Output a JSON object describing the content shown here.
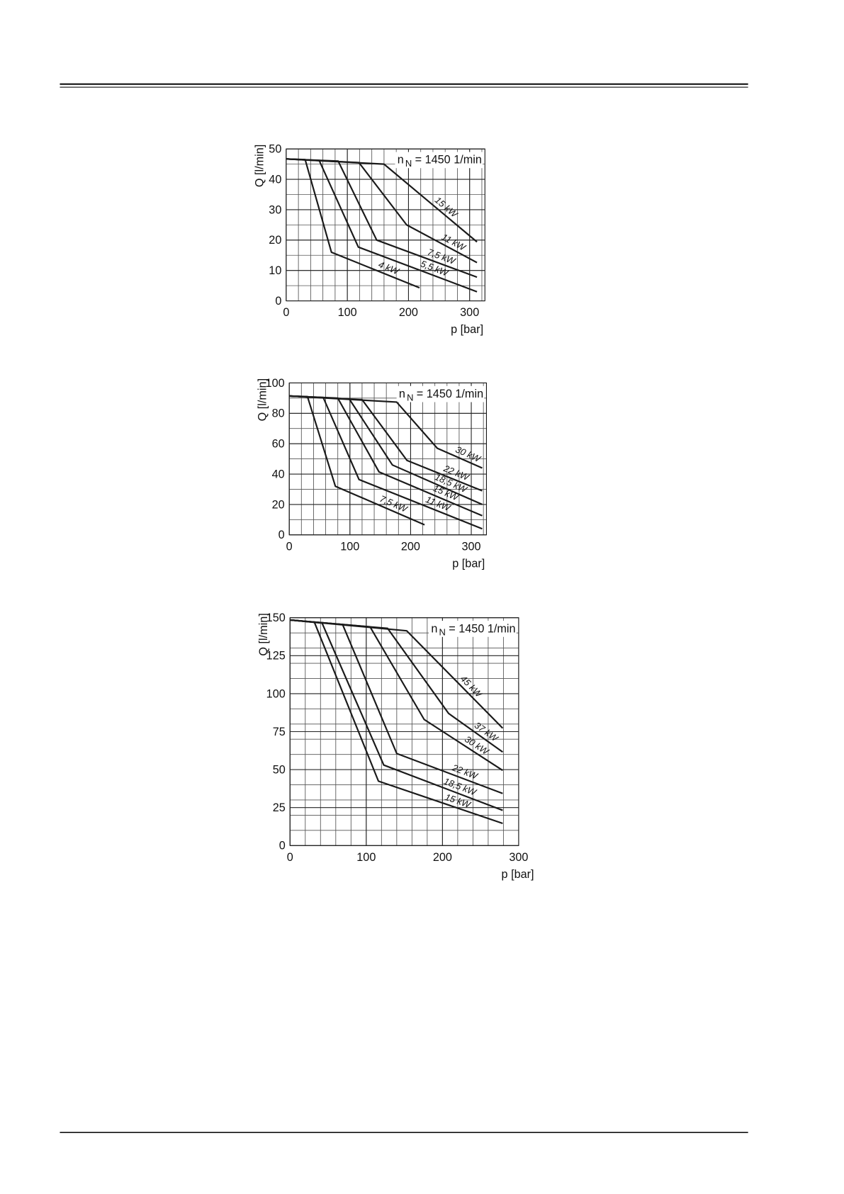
{
  "chart_data": [
    {
      "type": "line",
      "ylabel": "Q [l/min]",
      "xlabel": "p [bar]",
      "annotation": {
        "text": "n",
        "subscript": "N",
        "rest": "= 1450 1/min"
      },
      "xlim": [
        0,
        325
      ],
      "ylim": [
        0,
        50
      ],
      "xticks": [
        0,
        100,
        200,
        300
      ],
      "yticks": [
        0,
        10,
        20,
        30,
        40,
        50
      ],
      "grid": true,
      "xgrid_step": 20,
      "ygrid_step": 5,
      "color": "#1a1a1a",
      "series": [
        {
          "name": "15 kW",
          "x": [
            0,
            160,
            312
          ],
          "values": [
            46.7,
            45,
            19.4
          ]
        },
        {
          "name": "11 kW",
          "x": [
            0,
            119,
            197,
            312
          ],
          "values": [
            46.7,
            45.5,
            25,
            12.6
          ]
        },
        {
          "name": "7,5 kW",
          "x": [
            0,
            85,
            148,
            312
          ],
          "values": [
            46.7,
            46,
            20,
            7.8
          ]
        },
        {
          "name": "5,5 kW",
          "x": [
            0,
            54,
            118,
            312
          ],
          "values": [
            46.7,
            46.2,
            17.7,
            3
          ]
        },
        {
          "name": "4 kW",
          "x": [
            0,
            31,
            74,
            218
          ],
          "values": [
            46.7,
            46.5,
            16,
            4.3
          ]
        }
      ]
    },
    {
      "type": "line",
      "ylabel": "Q [l/min]",
      "xlabel": "p [bar]",
      "annotation": {
        "text": "n",
        "subscript": "N",
        "rest": "= 1450 1/min"
      },
      "xlim": [
        0,
        325
      ],
      "ylim": [
        0,
        100
      ],
      "xticks": [
        0,
        100,
        200,
        300
      ],
      "yticks": [
        0,
        20,
        40,
        60,
        80,
        100
      ],
      "grid": true,
      "xgrid_step": 20,
      "ygrid_step": 10,
      "color": "#1a1a1a",
      "series": [
        {
          "name": "30 kW",
          "x": [
            0,
            177,
            244,
            318
          ],
          "values": [
            91.4,
            87.4,
            57,
            44
          ]
        },
        {
          "name": "22 kW",
          "x": [
            0,
            120,
            194,
            318
          ],
          "values": [
            91.4,
            89,
            49,
            29
          ]
        },
        {
          "name": "18,5 kW",
          "x": [
            0,
            99,
            170,
            318
          ],
          "values": [
            91.4,
            89.4,
            46,
            20
          ]
        },
        {
          "name": "15 kW",
          "x": [
            0,
            80,
            148,
            318
          ],
          "values": [
            91.4,
            90,
            41.4,
            12.6
          ]
        },
        {
          "name": "11 kW",
          "x": [
            0,
            56,
            115,
            318
          ],
          "values": [
            91.4,
            90.4,
            36.4,
            4
          ]
        },
        {
          "name": "7,5 kW",
          "x": [
            0,
            30,
            76,
            223
          ],
          "values": [
            91.4,
            91,
            32,
            6.6
          ]
        }
      ]
    },
    {
      "type": "line",
      "ylabel": "Q [l/min]",
      "xlabel": "p [bar]",
      "annotation": {
        "text": "n",
        "subscript": "N",
        "rest": "= 1450 1/min"
      },
      "xlim": [
        0,
        300
      ],
      "ylim": [
        0,
        150
      ],
      "xticks": [
        0,
        100,
        200,
        300
      ],
      "yticks": [
        0,
        25,
        50,
        75,
        100,
        125,
        150
      ],
      "grid": true,
      "xgrid_step": 20,
      "ygrid_step": 10,
      "color": "#1a1a1a",
      "series": [
        {
          "name": "45 kW",
          "x": [
            0,
            153,
            279
          ],
          "values": [
            148.5,
            141.4,
            77.3
          ]
        },
        {
          "name": "37 kW",
          "x": [
            0,
            128,
            208,
            279
          ],
          "values": [
            148.5,
            143,
            87,
            61.6
          ]
        },
        {
          "name": "30 kW",
          "x": [
            0,
            105,
            176,
            279
          ],
          "values": [
            148.5,
            144,
            83,
            49.5
          ]
        },
        {
          "name": "22 kW",
          "x": [
            0,
            69,
            140,
            279
          ],
          "values": [
            148.5,
            145.5,
            60.6,
            34.3
          ]
        },
        {
          "name": "18,5 kW",
          "x": [
            0,
            42,
            123,
            279
          ],
          "values": [
            148.5,
            146.5,
            53,
            23.2
          ]
        },
        {
          "name": "15 kW",
          "x": [
            0,
            32,
            116,
            279
          ],
          "values": [
            148.5,
            147,
            42.4,
            14.6
          ]
        }
      ]
    }
  ]
}
